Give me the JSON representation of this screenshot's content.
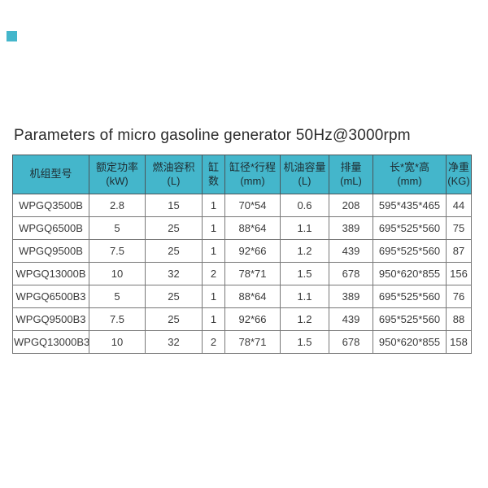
{
  "title": "Parameters of micro gasoline generator 50Hz@3000rpm",
  "colors": {
    "accent_teal": "#44b6cb",
    "header_text": "#1e2c31",
    "body_text": "#3a3a3a",
    "grid_line": "#777777",
    "outer_line": "#555555",
    "title_text": "#2b2b2b"
  },
  "table": {
    "header_display": [
      "机组型号",
      "额定功率\n(kW)",
      "燃油容积\n(L)",
      "缸数",
      "缸径*行程\n(mm)",
      "机油容量\n(L)",
      "排量\n(mL)",
      "长*宽*高\n(mm)",
      "净重\n(KG)"
    ],
    "rows": [
      [
        "WPGQ3500B",
        "2.8",
        "15",
        "1",
        "70*54",
        "0.6",
        "208",
        "595*435*465",
        "44"
      ],
      [
        "WPGQ6500B",
        "5",
        "25",
        "1",
        "88*64",
        "1.1",
        "389",
        "695*525*560",
        "75"
      ],
      [
        "WPGQ9500B",
        "7.5",
        "25",
        "1",
        "92*66",
        "1.2",
        "439",
        "695*525*560",
        "87"
      ],
      [
        "WPGQ13000B",
        "10",
        "32",
        "2",
        "78*71",
        "1.5",
        "678",
        "950*620*855",
        "156"
      ],
      [
        "WPGQ6500B3",
        "5",
        "25",
        "1",
        "88*64",
        "1.1",
        "389",
        "695*525*560",
        "76"
      ],
      [
        "WPGQ9500B3",
        "7.5",
        "25",
        "1",
        "92*66",
        "1.2",
        "439",
        "695*525*560",
        "88"
      ],
      [
        "WPGQ13000B3",
        "10",
        "32",
        "2",
        "78*71",
        "1.5",
        "678",
        "950*620*855",
        "158"
      ]
    ]
  },
  "chart_data": {
    "type": "table",
    "title": "Parameters of micro gasoline generator 50Hz@3000rpm",
    "columns": [
      "机组型号",
      "额定功率 (kW)",
      "燃油容积 (L)",
      "缸数",
      "缸径*行程 (mm)",
      "机油容量 (L)",
      "排量 (mL)",
      "长*宽*高 (mm)",
      "净重 (KG)"
    ],
    "rows": [
      [
        "WPGQ3500B",
        2.8,
        15,
        1,
        "70*54",
        0.6,
        208,
        "595*435*465",
        44
      ],
      [
        "WPGQ6500B",
        5,
        25,
        1,
        "88*64",
        1.1,
        389,
        "695*525*560",
        75
      ],
      [
        "WPGQ9500B",
        7.5,
        25,
        1,
        "92*66",
        1.2,
        439,
        "695*525*560",
        87
      ],
      [
        "WPGQ13000B",
        10,
        32,
        2,
        "78*71",
        1.5,
        678,
        "950*620*855",
        156
      ],
      [
        "WPGQ6500B3",
        5,
        25,
        1,
        "88*64",
        1.1,
        389,
        "695*525*560",
        76
      ],
      [
        "WPGQ9500B3",
        7.5,
        25,
        1,
        "92*66",
        1.2,
        439,
        "695*525*560",
        88
      ],
      [
        "WPGQ13000B3",
        10,
        32,
        2,
        "78*71",
        1.5,
        678,
        "950*620*855",
        158
      ]
    ]
  }
}
